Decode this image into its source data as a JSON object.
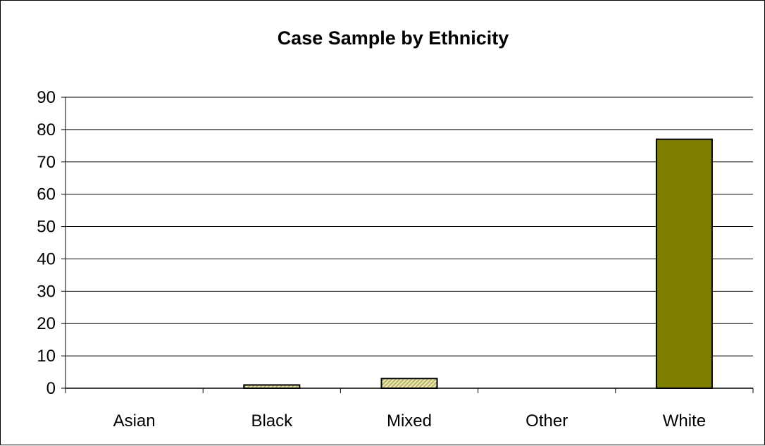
{
  "chart_data": {
    "type": "bar",
    "title": "Case Sample by Ethnicity",
    "xlabel": "",
    "ylabel": "",
    "categories": [
      "Asian",
      "Black",
      "Mixed",
      "Other",
      "White"
    ],
    "values": [
      0,
      1,
      3,
      0,
      77
    ],
    "ylim": [
      0,
      90
    ],
    "yticks": [
      0,
      10,
      20,
      30,
      40,
      50,
      60,
      70,
      80,
      90
    ],
    "grid": true,
    "legend": "none",
    "colors": {
      "bar_main": "#808000",
      "bar_small_fill": "#d8d498",
      "bar_stroke": "#000000",
      "grid": "#000000"
    }
  }
}
